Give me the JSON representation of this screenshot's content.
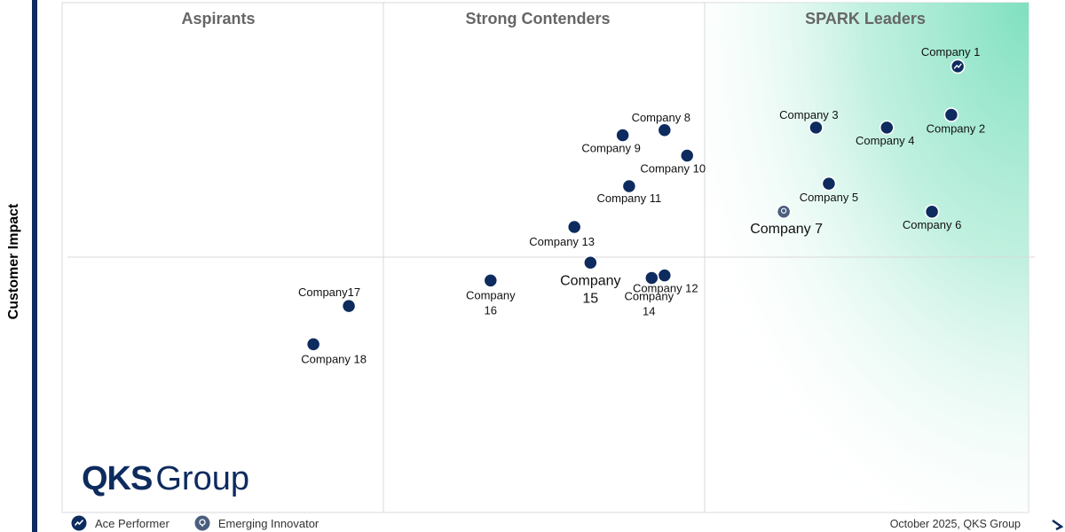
{
  "chart_data": {
    "type": "scatter",
    "quadrants": {
      "left": "Aspirants",
      "middle": "Strong Contenders",
      "right": "SPARK Leaders"
    },
    "ylabel": "Customer Impact",
    "xlabel": "",
    "xlim": [
      0,
      3
    ],
    "ylim": [
      0,
      2
    ],
    "y_divider": 1.0,
    "points": [
      {
        "name": "Company 1",
        "x": 2.78,
        "y": 1.75,
        "type": "ace"
      },
      {
        "name": "Company 2",
        "x": 2.76,
        "y": 1.56,
        "type": "standard"
      },
      {
        "name": "Company 3",
        "x": 2.34,
        "y": 1.51,
        "type": "standard"
      },
      {
        "name": "Company 4",
        "x": 2.56,
        "y": 1.51,
        "type": "standard"
      },
      {
        "name": "Company 5",
        "x": 2.38,
        "y": 1.29,
        "type": "standard"
      },
      {
        "name": "Company 6",
        "x": 2.7,
        "y": 1.18,
        "type": "standard"
      },
      {
        "name": "Company 7",
        "x": 2.24,
        "y": 1.18,
        "type": "emerging"
      },
      {
        "name": "Company 8",
        "x": 1.87,
        "y": 1.5,
        "type": "standard"
      },
      {
        "name": "Company 9",
        "x": 1.74,
        "y": 1.48,
        "type": "standard"
      },
      {
        "name": "Company 10",
        "x": 1.94,
        "y": 1.4,
        "type": "standard"
      },
      {
        "name": "Company 11",
        "x": 1.76,
        "y": 1.28,
        "type": "standard"
      },
      {
        "name": "Company 12",
        "x": 1.87,
        "y": 0.93,
        "type": "standard"
      },
      {
        "name": "Company 13",
        "x": 1.59,
        "y": 1.12,
        "type": "standard"
      },
      {
        "name": "Company 14",
        "x": 1.83,
        "y": 0.92,
        "type": "standard"
      },
      {
        "name": "Company 15",
        "x": 1.64,
        "y": 0.98,
        "type": "standard"
      },
      {
        "name": "Company 16",
        "x": 1.33,
        "y": 0.91,
        "type": "standard"
      },
      {
        "name": "Company17",
        "x": 0.89,
        "y": 0.81,
        "type": "standard"
      },
      {
        "name": "Company 18",
        "x": 0.78,
        "y": 0.66,
        "type": "standard"
      }
    ]
  },
  "brand": {
    "part1": "QKS",
    "part2": "Group"
  },
  "legend": {
    "ace": "Ace Performer",
    "emerging": "Emerging Innovator"
  },
  "footer": {
    "date": "October 2025, QKS Group"
  },
  "colors": {
    "marker": "#0d2b5e",
    "emerging": "#4a5e7e",
    "axis": "#0d2b5e",
    "leader_gradient": "#7fe0c0",
    "header": "#666666",
    "grid": "#d8d8d8"
  }
}
